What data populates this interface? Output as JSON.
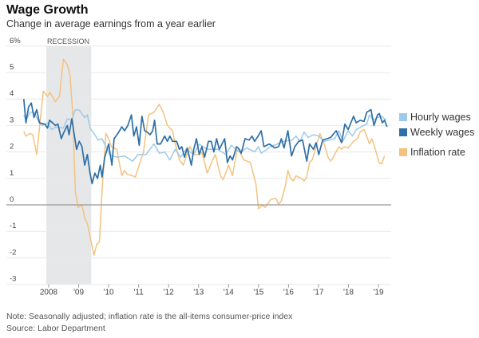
{
  "title": "Wage Growth",
  "subtitle": "Change in average earnings from a year earlier",
  "note": "Note: Seasonally adjusted; inflation rate is the all-items consumer-price index",
  "source": "Source: Labor Department",
  "chart_data": {
    "type": "line",
    "title": "Wage Growth",
    "ylabel": "%",
    "ylim": [
      -3,
      6
    ],
    "xlim": [
      2007.0,
      2019.4
    ],
    "y_ticks": [
      {
        "v": 6,
        "label": "6%"
      },
      {
        "v": 5,
        "label": "5"
      },
      {
        "v": 4,
        "label": "4"
      },
      {
        "v": 3,
        "label": "3"
      },
      {
        "v": 2,
        "label": "2"
      },
      {
        "v": 1,
        "label": "1"
      },
      {
        "v": 0,
        "label": "0"
      },
      {
        "v": -1,
        "label": "-1"
      },
      {
        "v": -2,
        "label": "-2"
      },
      {
        "v": -3,
        "label": "-3"
      }
    ],
    "x_ticks": [
      {
        "v": 2008,
        "label": "2008"
      },
      {
        "v": 2009,
        "label": "'09"
      },
      {
        "v": 2010,
        "label": "'10"
      },
      {
        "v": 2011,
        "label": "'11"
      },
      {
        "v": 2012,
        "label": "'12"
      },
      {
        "v": 2013,
        "label": "'13"
      },
      {
        "v": 2014,
        "label": "'14"
      },
      {
        "v": 2015,
        "label": "'15"
      },
      {
        "v": 2016,
        "label": "'16"
      },
      {
        "v": 2017,
        "label": "'17"
      },
      {
        "v": 2018,
        "label": "'18"
      },
      {
        "v": 2019,
        "label": "'19"
      }
    ],
    "annotation": {
      "label": "RECESSION",
      "start": 2007.92,
      "end": 2009.42
    },
    "legend_position": "right",
    "series": [
      {
        "name": "Hourly wages",
        "color": "#9ecae9",
        "points": [
          [
            2007.17,
            3.4
          ],
          [
            2007.24,
            3.2
          ],
          [
            2007.38,
            3.5
          ],
          [
            2007.51,
            3.5
          ],
          [
            2007.64,
            3.2
          ],
          [
            2007.78,
            3.0
          ],
          [
            2007.96,
            3.1
          ],
          [
            2008.09,
            2.85
          ],
          [
            2008.27,
            2.95
          ],
          [
            2008.49,
            2.9
          ],
          [
            2008.62,
            3.25
          ],
          [
            2008.76,
            3.2
          ],
          [
            2008.89,
            3.6
          ],
          [
            2009.02,
            3.58
          ],
          [
            2009.2,
            3.3
          ],
          [
            2009.29,
            3.4
          ],
          [
            2009.38,
            2.9
          ],
          [
            2009.51,
            2.7
          ],
          [
            2009.65,
            2.45
          ],
          [
            2009.78,
            2.5
          ],
          [
            2009.91,
            2.2
          ],
          [
            2010.04,
            1.9
          ],
          [
            2010.27,
            1.8
          ],
          [
            2010.53,
            1.85
          ],
          [
            2010.8,
            1.65
          ],
          [
            2010.98,
            1.9
          ],
          [
            2011.24,
            1.9
          ],
          [
            2011.51,
            2.3
          ],
          [
            2011.69,
            1.95
          ],
          [
            2011.87,
            2.0
          ],
          [
            2012.04,
            1.7
          ],
          [
            2012.22,
            2.1
          ],
          [
            2012.4,
            1.8
          ],
          [
            2012.58,
            2.1
          ],
          [
            2012.84,
            1.9
          ],
          [
            2013.02,
            2.3
          ],
          [
            2013.29,
            2.1
          ],
          [
            2013.64,
            2.1
          ],
          [
            2013.91,
            1.9
          ],
          [
            2014.09,
            2.25
          ],
          [
            2014.36,
            2.0
          ],
          [
            2014.42,
            2.0
          ],
          [
            2014.6,
            2.15
          ],
          [
            2014.87,
            2.0
          ],
          [
            2015.0,
            2.2
          ],
          [
            2015.09,
            1.95
          ],
          [
            2015.4,
            2.2
          ],
          [
            2015.85,
            2.4
          ],
          [
            2016.12,
            2.45
          ],
          [
            2016.25,
            2.6
          ],
          [
            2016.38,
            2.4
          ],
          [
            2016.52,
            2.75
          ],
          [
            2016.65,
            2.55
          ],
          [
            2016.83,
            2.65
          ],
          [
            2017.01,
            2.6
          ],
          [
            2017.19,
            2.4
          ],
          [
            2017.54,
            2.5
          ],
          [
            2017.68,
            2.8
          ],
          [
            2017.81,
            2.4
          ],
          [
            2017.99,
            2.8
          ],
          [
            2018.13,
            2.6
          ],
          [
            2018.26,
            2.85
          ],
          [
            2018.43,
            2.95
          ],
          [
            2018.61,
            3.05
          ],
          [
            2018.7,
            3.4
          ],
          [
            2018.83,
            3.2
          ],
          [
            2018.97,
            3.3
          ],
          [
            2019.11,
            3.35
          ],
          [
            2019.25,
            3.2
          ]
        ]
      },
      {
        "name": "Weekly wages",
        "color": "#2e6fa7",
        "points": [
          [
            2007.17,
            4.0
          ],
          [
            2007.24,
            3.1
          ],
          [
            2007.33,
            3.7
          ],
          [
            2007.42,
            3.85
          ],
          [
            2007.51,
            3.3
          ],
          [
            2007.6,
            3.6
          ],
          [
            2007.69,
            3.1
          ],
          [
            2007.87,
            3.05
          ],
          [
            2007.96,
            2.9
          ],
          [
            2008.03,
            3.2
          ],
          [
            2008.13,
            3.1
          ],
          [
            2008.22,
            3.0
          ],
          [
            2008.31,
            3.05
          ],
          [
            2008.42,
            2.5
          ],
          [
            2008.49,
            2.7
          ],
          [
            2008.62,
            3.0
          ],
          [
            2008.68,
            2.65
          ],
          [
            2008.77,
            3.25
          ],
          [
            2008.86,
            2.6
          ],
          [
            2008.93,
            2.1
          ],
          [
            2009.02,
            2.4
          ],
          [
            2009.11,
            2.2
          ],
          [
            2009.2,
            1.5
          ],
          [
            2009.29,
            1.9
          ],
          [
            2009.38,
            1.2
          ],
          [
            2009.45,
            0.8
          ],
          [
            2009.54,
            1.2
          ],
          [
            2009.63,
            1.0
          ],
          [
            2009.72,
            1.5
          ],
          [
            2009.78,
            1.05
          ],
          [
            2009.87,
            1.8
          ],
          [
            2010.0,
            2.3
          ],
          [
            2010.11,
            1.5
          ],
          [
            2010.18,
            2.5
          ],
          [
            2010.31,
            2.7
          ],
          [
            2010.44,
            2.95
          ],
          [
            2010.53,
            2.8
          ],
          [
            2010.64,
            3.0
          ],
          [
            2010.76,
            3.4
          ],
          [
            2010.84,
            2.6
          ],
          [
            2010.93,
            2.95
          ],
          [
            2011.02,
            2.25
          ],
          [
            2011.11,
            3.35
          ],
          [
            2011.2,
            2.8
          ],
          [
            2011.29,
            2.75
          ],
          [
            2011.38,
            2.65
          ],
          [
            2011.47,
            2.8
          ],
          [
            2011.53,
            3.2
          ],
          [
            2011.62,
            2.3
          ],
          [
            2011.73,
            2.3
          ],
          [
            2011.87,
            2.6
          ],
          [
            2011.96,
            2.4
          ],
          [
            2012.04,
            2.6
          ],
          [
            2012.13,
            2.4
          ],
          [
            2012.27,
            2.4
          ],
          [
            2012.36,
            2.1
          ],
          [
            2012.44,
            2.2
          ],
          [
            2012.53,
            1.8
          ],
          [
            2012.62,
            2.15
          ],
          [
            2012.76,
            1.5
          ],
          [
            2012.84,
            2.1
          ],
          [
            2012.93,
            2.5
          ],
          [
            2013.02,
            1.9
          ],
          [
            2013.11,
            2.2
          ],
          [
            2013.2,
            1.8
          ],
          [
            2013.33,
            2.4
          ],
          [
            2013.42,
            2.4
          ],
          [
            2013.51,
            2.0
          ],
          [
            2013.6,
            2.5
          ],
          [
            2013.69,
            2.1
          ],
          [
            2013.87,
            2.5
          ],
          [
            2013.96,
            1.6
          ],
          [
            2014.05,
            1.85
          ],
          [
            2014.13,
            1.7
          ],
          [
            2014.27,
            2.2
          ],
          [
            2014.36,
            2.1
          ],
          [
            2014.42,
            1.95
          ],
          [
            2014.55,
            2.5
          ],
          [
            2014.69,
            2.45
          ],
          [
            2014.78,
            2.6
          ],
          [
            2014.87,
            2.4
          ],
          [
            2014.96,
            2.55
          ],
          [
            2015.09,
            2.8
          ],
          [
            2015.18,
            2.2
          ],
          [
            2015.36,
            2.3
          ],
          [
            2015.54,
            2.15
          ],
          [
            2015.67,
            2.2
          ],
          [
            2015.76,
            2.5
          ],
          [
            2015.85,
            2.15
          ],
          [
            2015.98,
            2.8
          ],
          [
            2016.1,
            1.85
          ],
          [
            2016.21,
            2.2
          ],
          [
            2016.34,
            2.4
          ],
          [
            2016.47,
            2.45
          ],
          [
            2016.61,
            1.65
          ],
          [
            2016.7,
            2.3
          ],
          [
            2016.83,
            2.1
          ],
          [
            2016.92,
            2.35
          ],
          [
            2017.01,
            1.9
          ],
          [
            2017.14,
            2.45
          ],
          [
            2017.28,
            2.5
          ],
          [
            2017.41,
            2.55
          ],
          [
            2017.59,
            2.8
          ],
          [
            2017.77,
            2.35
          ],
          [
            2017.88,
            3.05
          ],
          [
            2017.99,
            2.85
          ],
          [
            2018.08,
            3.1
          ],
          [
            2018.17,
            3.35
          ],
          [
            2018.26,
            3.1
          ],
          [
            2018.39,
            3.2
          ],
          [
            2018.52,
            3.15
          ],
          [
            2018.61,
            3.5
          ],
          [
            2018.75,
            3.6
          ],
          [
            2018.85,
            3.0
          ],
          [
            2018.97,
            3.4
          ],
          [
            2019.03,
            3.45
          ],
          [
            2019.13,
            3.1
          ],
          [
            2019.2,
            3.2
          ],
          [
            2019.29,
            2.95
          ]
        ]
      },
      {
        "name": "Inflation rate",
        "color": "#f4c27f",
        "points": [
          [
            2007.17,
            2.78
          ],
          [
            2007.24,
            2.6
          ],
          [
            2007.38,
            2.7
          ],
          [
            2007.47,
            2.65
          ],
          [
            2007.6,
            1.9
          ],
          [
            2007.82,
            4.3
          ],
          [
            2007.96,
            4.1
          ],
          [
            2008.04,
            4.25
          ],
          [
            2008.22,
            3.9
          ],
          [
            2008.36,
            4.1
          ],
          [
            2008.49,
            5.5
          ],
          [
            2008.62,
            5.3
          ],
          [
            2008.71,
            4.9
          ],
          [
            2008.8,
            3.5
          ],
          [
            2008.89,
            0.5
          ],
          [
            2008.98,
            -0.1
          ],
          [
            2009.11,
            0.0
          ],
          [
            2009.2,
            -0.5
          ],
          [
            2009.29,
            -0.7
          ],
          [
            2009.38,
            -1.2
          ],
          [
            2009.51,
            -1.9
          ],
          [
            2009.6,
            -1.5
          ],
          [
            2009.69,
            -1.4
          ],
          [
            2009.78,
            0.5
          ],
          [
            2009.91,
            2.7
          ],
          [
            2010.0,
            2.5
          ],
          [
            2010.09,
            2.2
          ],
          [
            2010.27,
            2.1
          ],
          [
            2010.44,
            1.1
          ],
          [
            2010.53,
            1.3
          ],
          [
            2010.62,
            1.15
          ],
          [
            2010.8,
            1.1
          ],
          [
            2010.89,
            1.05
          ],
          [
            2011.16,
            2.0
          ],
          [
            2011.33,
            3.4
          ],
          [
            2011.51,
            3.5
          ],
          [
            2011.69,
            3.8
          ],
          [
            2011.82,
            3.5
          ],
          [
            2011.96,
            3.0
          ],
          [
            2012.13,
            2.8
          ],
          [
            2012.22,
            2.3
          ],
          [
            2012.36,
            1.7
          ],
          [
            2012.49,
            1.5
          ],
          [
            2012.58,
            1.8
          ],
          [
            2012.71,
            2.2
          ],
          [
            2012.84,
            1.9
          ],
          [
            2013.02,
            1.9
          ],
          [
            2013.11,
            2.0
          ],
          [
            2013.29,
            1.2
          ],
          [
            2013.47,
            1.7
          ],
          [
            2013.56,
            1.9
          ],
          [
            2013.73,
            1.1
          ],
          [
            2013.82,
            0.95
          ],
          [
            2014.0,
            1.5
          ],
          [
            2014.13,
            1.1
          ],
          [
            2014.27,
            2.0
          ],
          [
            2014.33,
            2.1
          ],
          [
            2014.51,
            1.7
          ],
          [
            2014.73,
            1.6
          ],
          [
            2014.91,
            0.8
          ],
          [
            2015.0,
            -0.15
          ],
          [
            2015.13,
            0.0
          ],
          [
            2015.22,
            -0.1
          ],
          [
            2015.4,
            0.2
          ],
          [
            2015.58,
            0.25
          ],
          [
            2015.67,
            0.02
          ],
          [
            2015.76,
            0.15
          ],
          [
            2015.89,
            0.7
          ],
          [
            2015.98,
            1.3
          ],
          [
            2016.07,
            1.0
          ],
          [
            2016.16,
            0.9
          ],
          [
            2016.25,
            1.1
          ],
          [
            2016.43,
            1.0
          ],
          [
            2016.52,
            0.9
          ],
          [
            2016.61,
            1.05
          ],
          [
            2016.7,
            1.6
          ],
          [
            2016.79,
            1.7
          ],
          [
            2016.92,
            2.2
          ],
          [
            2017.05,
            2.7
          ],
          [
            2017.19,
            2.3
          ],
          [
            2017.32,
            1.8
          ],
          [
            2017.41,
            1.65
          ],
          [
            2017.54,
            1.9
          ],
          [
            2017.68,
            2.2
          ],
          [
            2017.77,
            2.1
          ],
          [
            2017.86,
            2.2
          ],
          [
            2017.99,
            2.15
          ],
          [
            2018.17,
            2.4
          ],
          [
            2018.3,
            2.5
          ],
          [
            2018.39,
            2.75
          ],
          [
            2018.52,
            2.85
          ],
          [
            2018.61,
            2.6
          ],
          [
            2018.7,
            2.3
          ],
          [
            2018.78,
            2.5
          ],
          [
            2018.87,
            2.2
          ],
          [
            2019.02,
            1.6
          ],
          [
            2019.11,
            1.55
          ],
          [
            2019.2,
            1.85
          ]
        ]
      }
    ]
  }
}
